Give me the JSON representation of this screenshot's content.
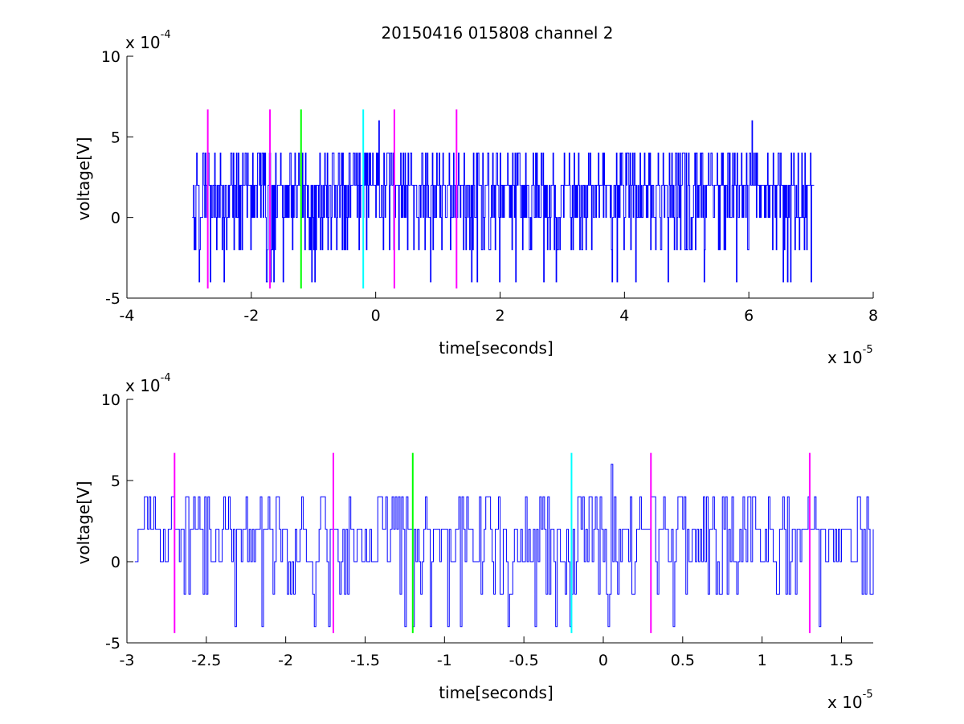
{
  "figure": {
    "title": "20150416 015808 channel 2"
  },
  "chart_data": [
    {
      "type": "line",
      "name_key": "top",
      "title": "20150416 015808 channel 2",
      "xlabel": "time[seconds]",
      "ylabel": "voltage[V]",
      "x_multiplier": "x 10",
      "x_multiplier_exp": "-5",
      "y_multiplier": "x 10",
      "y_multiplier_exp": "-4",
      "xlim": [
        -4,
        8
      ],
      "ylim": [
        -5,
        10
      ],
      "xticks": [
        -4,
        -2,
        0,
        2,
        4,
        6,
        8
      ],
      "xtick_labels": [
        "-4",
        "-2",
        "0",
        "2",
        "4",
        "6",
        "8"
      ],
      "yticks": [
        -5,
        0,
        5,
        10
      ],
      "ytick_labels": [
        "-5",
        "0",
        "5",
        "10"
      ],
      "grid": false,
      "signal": {
        "color": "#0000ff",
        "x_range": [
          -2.95,
          7.05
        ],
        "levels": [
          -4,
          -2,
          0,
          2,
          4,
          6
        ],
        "baseline": 2,
        "seed": 7,
        "n_samples": 1000,
        "spikes": [
          {
            "x": 0.05,
            "y": 6
          },
          {
            "x": 6.05,
            "y": 6
          },
          {
            "x": -1.75,
            "y": -4
          },
          {
            "x": -0.98,
            "y": -4
          },
          {
            "x": 4.7,
            "y": -4
          }
        ]
      },
      "markers": [
        {
          "x": -2.7,
          "color": "#ff00ff",
          "ymin": -4.4,
          "ymax": 6.7
        },
        {
          "x": -1.7,
          "color": "#ff00ff",
          "ymin": -4.4,
          "ymax": 6.7
        },
        {
          "x": -1.2,
          "color": "#00ff00",
          "ymin": -4.4,
          "ymax": 6.7
        },
        {
          "x": -0.2,
          "color": "#00ffff",
          "ymin": -4.4,
          "ymax": 6.7
        },
        {
          "x": 0.3,
          "color": "#ff00ff",
          "ymin": -4.4,
          "ymax": 6.7
        },
        {
          "x": 1.3,
          "color": "#ff00ff",
          "ymin": -4.4,
          "ymax": 6.7
        }
      ]
    },
    {
      "type": "line",
      "name_key": "bottom",
      "xlabel": "time[seconds]",
      "ylabel": "voltage[V]",
      "x_multiplier": "x 10",
      "x_multiplier_exp": "-5",
      "y_multiplier": "x 10",
      "y_multiplier_exp": "-4",
      "xlim": [
        -3.0,
        1.7
      ],
      "ylim": [
        -5,
        10
      ],
      "xticks": [
        -3,
        -2.5,
        -2,
        -1.5,
        -1,
        -0.5,
        0,
        0.5,
        1,
        1.5
      ],
      "xtick_labels": [
        "-3",
        "-2.5",
        "-2",
        "-1.5",
        "-1",
        "-0.5",
        "0",
        "0.5",
        "1",
        "1.5"
      ],
      "yticks": [
        -5,
        0,
        5,
        10
      ],
      "ytick_labels": [
        "-5",
        "0",
        "5",
        "10"
      ],
      "grid": false,
      "signal": {
        "color": "#0000ff",
        "x_range": [
          -2.95,
          1.7
        ],
        "levels": [
          -4,
          -2,
          0,
          2,
          4,
          6
        ],
        "baseline": 2,
        "seed": 11,
        "n_samples": 465,
        "spikes": [
          {
            "x": 0.05,
            "y": 6
          },
          {
            "x": -1.82,
            "y": -4
          },
          {
            "x": -1.73,
            "y": -4
          },
          {
            "x": -0.98,
            "y": -4
          }
        ]
      },
      "markers": [
        {
          "x": -2.7,
          "color": "#ff00ff",
          "ymin": -4.4,
          "ymax": 6.7
        },
        {
          "x": -1.7,
          "color": "#ff00ff",
          "ymin": -4.4,
          "ymax": 6.7
        },
        {
          "x": -1.2,
          "color": "#00ff00",
          "ymin": -4.4,
          "ymax": 6.7
        },
        {
          "x": -0.2,
          "color": "#00ffff",
          "ymin": -4.4,
          "ymax": 6.7
        },
        {
          "x": 0.3,
          "color": "#ff00ff",
          "ymin": -4.4,
          "ymax": 6.7
        },
        {
          "x": 1.3,
          "color": "#ff00ff",
          "ymin": -4.4,
          "ymax": 6.7
        }
      ]
    }
  ]
}
